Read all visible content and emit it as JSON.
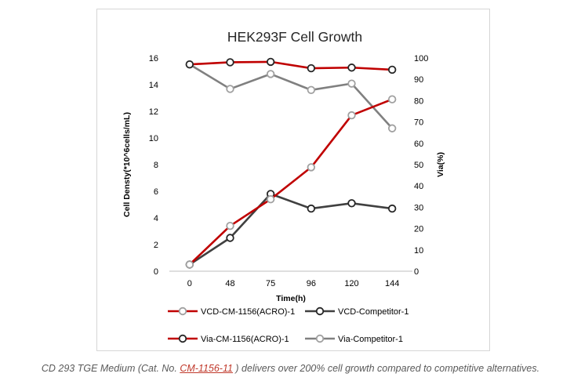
{
  "chart_data": {
    "type": "line",
    "title": "HEK293F Cell Growth",
    "xlabel": "Time(h)",
    "ylabel": "Cell Densty(*10^6cells/mL)",
    "y2label": "Via(%)",
    "categories": [
      "0",
      "48",
      "75",
      "96",
      "120",
      "144"
    ],
    "ylim": [
      0,
      16
    ],
    "y_ticks": [
      0,
      2,
      4,
      6,
      8,
      10,
      12,
      14,
      16
    ],
    "y2lim": [
      0,
      100
    ],
    "y2_ticks": [
      0,
      10,
      20,
      30,
      40,
      50,
      60,
      70,
      80,
      90,
      100
    ],
    "grid": false,
    "legend_position": "bottom",
    "series": [
      {
        "name": "VCD-CM-1156(ACRO)-1",
        "axis": "left",
        "color": "#c00000",
        "marker_stroke": "#a0a0a0",
        "values": [
          0.5,
          3.4,
          5.4,
          7.8,
          11.7,
          12.9
        ]
      },
      {
        "name": "VCD-Competitor-1",
        "axis": "left",
        "color": "#404040",
        "marker_stroke": "#262626",
        "values": [
          0.5,
          2.5,
          5.8,
          4.7,
          5.1,
          4.7
        ]
      },
      {
        "name": "Via-CM-1156(ACRO)-1",
        "axis": "right",
        "color": "#c00000",
        "marker_stroke": "#262626",
        "values": [
          97,
          98,
          98.2,
          95.2,
          95.5,
          94.5
        ]
      },
      {
        "name": "Via-Competitor-1",
        "axis": "right",
        "color": "#808080",
        "marker_stroke": "#a0a0a0",
        "values": [
          97,
          85.5,
          92.5,
          85,
          88,
          67
        ]
      }
    ]
  },
  "caption": {
    "before": "CD 293 TGE Medium (Cat. No. ",
    "link": "CM-1156-11",
    "after": " ) delivers over 200% cell growth compared to competitive alternatives."
  }
}
